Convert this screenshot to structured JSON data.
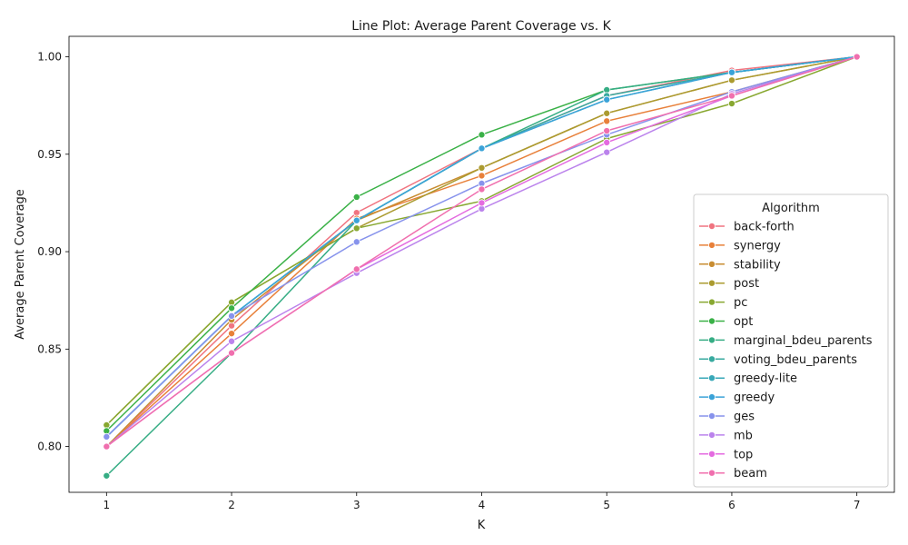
{
  "chart_data": {
    "type": "line",
    "title": "Line Plot: Average Parent Coverage vs. K",
    "xlabel": "K",
    "ylabel": "Average Parent Coverage",
    "x": [
      1,
      2,
      3,
      4,
      5,
      6,
      7
    ],
    "xlim": [
      0.7,
      7.3
    ],
    "ylim": [
      0.7765,
      1.0105
    ],
    "x_ticks": [
      "1",
      "2",
      "3",
      "4",
      "5",
      "6",
      "7"
    ],
    "y_ticks": [
      "0.80",
      "0.85",
      "0.90",
      "0.95",
      "1.00"
    ],
    "y_tick_values": [
      0.8,
      0.85,
      0.9,
      0.95,
      1.0
    ],
    "grid": false,
    "legend": {
      "title": "Algorithm",
      "placement": "center-right"
    },
    "series": [
      {
        "name": "back-forth",
        "color": "#f07480",
        "values": [
          0.8,
          0.862,
          0.92,
          0.953,
          0.98,
          0.993,
          1.0
        ]
      },
      {
        "name": "synergy",
        "color": "#e8803a",
        "values": [
          0.8,
          0.858,
          0.917,
          0.939,
          0.967,
          0.982,
          1.0
        ]
      },
      {
        "name": "stability",
        "color": "#c88d32",
        "values": [
          0.8,
          0.865,
          0.916,
          0.943,
          0.971,
          0.988,
          1.0
        ]
      },
      {
        "name": "post",
        "color": "#ab9b30",
        "values": [
          0.811,
          0.874,
          0.912,
          0.943,
          0.971,
          0.988,
          1.0
        ]
      },
      {
        "name": "pc",
        "color": "#88a831",
        "values": [
          0.811,
          0.874,
          0.912,
          0.926,
          0.958,
          0.976,
          1.0
        ]
      },
      {
        "name": "opt",
        "color": "#3ab147",
        "values": [
          0.808,
          0.871,
          0.928,
          0.96,
          0.983,
          0.992,
          1.0
        ]
      },
      {
        "name": "marginal_bdeu_parents",
        "color": "#36ad84",
        "values": [
          0.785,
          0.848,
          0.916,
          0.953,
          0.983,
          0.992,
          1.0
        ]
      },
      {
        "name": "voting_bdeu_parents",
        "color": "#38aa9f",
        "values": [
          0.805,
          0.867,
          0.916,
          0.953,
          0.98,
          0.992,
          1.0
        ]
      },
      {
        "name": "greedy-lite",
        "color": "#39a8b8",
        "values": [
          0.805,
          0.867,
          0.916,
          0.953,
          0.978,
          0.992,
          1.0
        ]
      },
      {
        "name": "greedy",
        "color": "#3ba3d8",
        "values": [
          0.805,
          0.867,
          0.916,
          0.953,
          0.978,
          0.992,
          1.0
        ]
      },
      {
        "name": "ges",
        "color": "#8793ec",
        "values": [
          0.805,
          0.867,
          0.905,
          0.935,
          0.96,
          0.982,
          1.0
        ]
      },
      {
        "name": "mb",
        "color": "#bb83ec",
        "values": [
          0.8,
          0.854,
          0.889,
          0.922,
          0.951,
          0.981,
          1.0
        ]
      },
      {
        "name": "top",
        "color": "#e46be0",
        "values": [
          0.8,
          0.848,
          0.891,
          0.925,
          0.956,
          0.98,
          1.0
        ]
      },
      {
        "name": "beam",
        "color": "#f06fae",
        "values": [
          0.8,
          0.848,
          0.891,
          0.932,
          0.962,
          0.98,
          1.0
        ]
      }
    ]
  }
}
